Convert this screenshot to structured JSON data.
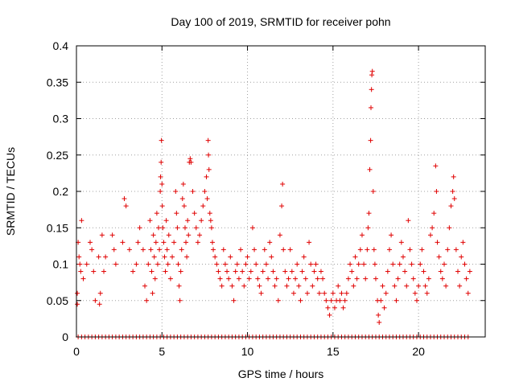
{
  "chart_data": {
    "type": "scatter",
    "title": "Day 100 of 2019, SRMTID for receiver pohn",
    "xlabel": "GPS time / hours",
    "ylabel": "SRMTID / TECUs",
    "xlim": [
      0,
      23.9
    ],
    "ylim": [
      0,
      0.4
    ],
    "x_ticks": [
      0,
      5,
      10,
      15,
      20
    ],
    "x_tick_labels": [
      "0",
      "5",
      "10",
      "15",
      "20"
    ],
    "y_ticks": [
      0,
      0.05,
      0.1,
      0.15,
      0.2,
      0.25,
      0.3,
      0.35,
      0.4
    ],
    "y_tick_labels": [
      "0",
      "0.05",
      "0.1",
      "0.15",
      "0.2",
      "0.25",
      "0.3",
      "0.35",
      "0.4"
    ],
    "grid": true,
    "marker": "+",
    "color": "#e00000",
    "series": [
      {
        "name": "SRMTID",
        "points": [
          [
            0.05,
            0.06
          ],
          [
            0.05,
            0.045
          ],
          [
            0.1,
            0.13
          ],
          [
            0.15,
            0.11
          ],
          [
            0.2,
            0.1
          ],
          [
            0.25,
            0.09
          ],
          [
            0.3,
            0.16
          ],
          [
            0.4,
            0.08
          ],
          [
            0.6,
            0.1
          ],
          [
            0.8,
            0.13
          ],
          [
            0.9,
            0.12
          ],
          [
            1.0,
            0.09
          ],
          [
            1.1,
            0.05
          ],
          [
            1.3,
            0.11
          ],
          [
            1.35,
            0.045
          ],
          [
            1.4,
            0.06
          ],
          [
            1.5,
            0.14
          ],
          [
            1.6,
            0.09
          ],
          [
            1.7,
            0.11
          ],
          [
            2.1,
            0.14
          ],
          [
            2.2,
            0.12
          ],
          [
            2.3,
            0.1
          ],
          [
            2.7,
            0.13
          ],
          [
            2.8,
            0.19
          ],
          [
            2.9,
            0.18
          ],
          [
            3.1,
            0.12
          ],
          [
            3.3,
            0.09
          ],
          [
            3.5,
            0.1
          ],
          [
            3.6,
            0.13
          ],
          [
            3.7,
            0.15
          ],
          [
            3.9,
            0.12
          ],
          [
            4.0,
            0.07
          ],
          [
            4.1,
            0.05
          ],
          [
            4.2,
            0.1
          ],
          [
            4.3,
            0.16
          ],
          [
            4.35,
            0.12
          ],
          [
            4.4,
            0.09
          ],
          [
            4.45,
            0.06
          ],
          [
            4.5,
            0.14
          ],
          [
            4.55,
            0.11
          ],
          [
            4.6,
            0.08
          ],
          [
            4.65,
            0.13
          ],
          [
            4.7,
            0.17
          ],
          [
            4.75,
            0.1
          ],
          [
            4.8,
            0.15
          ],
          [
            4.85,
            0.12
          ],
          [
            4.9,
            0.2
          ],
          [
            4.92,
            0.22
          ],
          [
            4.95,
            0.24
          ],
          [
            4.97,
            0.27
          ],
          [
            5.0,
            0.21
          ],
          [
            5.02,
            0.18
          ],
          [
            5.05,
            0.15
          ],
          [
            5.1,
            0.13
          ],
          [
            5.15,
            0.11
          ],
          [
            5.2,
            0.09
          ],
          [
            5.25,
            0.16
          ],
          [
            5.3,
            0.12
          ],
          [
            5.35,
            0.1
          ],
          [
            5.4,
            0.14
          ],
          [
            5.5,
            0.08
          ],
          [
            5.6,
            0.11
          ],
          [
            5.7,
            0.13
          ],
          [
            5.8,
            0.2
          ],
          [
            5.85,
            0.17
          ],
          [
            5.9,
            0.15
          ],
          [
            5.95,
            0.1
          ],
          [
            6.0,
            0.07
          ],
          [
            6.05,
            0.05
          ],
          [
            6.1,
            0.09
          ],
          [
            6.15,
            0.12
          ],
          [
            6.2,
            0.19
          ],
          [
            6.25,
            0.21
          ],
          [
            6.3,
            0.18
          ],
          [
            6.35,
            0.15
          ],
          [
            6.4,
            0.13
          ],
          [
            6.45,
            0.11
          ],
          [
            6.5,
            0.16
          ],
          [
            6.55,
            0.14
          ],
          [
            6.6,
            0.24
          ],
          [
            6.65,
            0.245
          ],
          [
            6.7,
            0.24
          ],
          [
            6.8,
            0.2
          ],
          [
            6.9,
            0.17
          ],
          [
            7.0,
            0.15
          ],
          [
            7.1,
            0.13
          ],
          [
            7.2,
            0.14
          ],
          [
            7.3,
            0.16
          ],
          [
            7.4,
            0.18
          ],
          [
            7.5,
            0.2
          ],
          [
            7.6,
            0.22
          ],
          [
            7.65,
            0.19
          ],
          [
            7.7,
            0.27
          ],
          [
            7.72,
            0.25
          ],
          [
            7.75,
            0.23
          ],
          [
            7.8,
            0.17
          ],
          [
            7.85,
            0.16
          ],
          [
            7.9,
            0.15
          ],
          [
            7.95,
            0.13
          ],
          [
            8.0,
            0.12
          ],
          [
            8.1,
            0.11
          ],
          [
            8.2,
            0.1
          ],
          [
            8.3,
            0.09
          ],
          [
            8.4,
            0.08
          ],
          [
            8.5,
            0.07
          ],
          [
            8.6,
            0.12
          ],
          [
            8.7,
            0.1
          ],
          [
            8.8,
            0.09
          ],
          [
            8.9,
            0.08
          ],
          [
            9.0,
            0.11
          ],
          [
            9.1,
            0.07
          ],
          [
            9.2,
            0.05
          ],
          [
            9.3,
            0.09
          ],
          [
            9.4,
            0.1
          ],
          [
            9.5,
            0.08
          ],
          [
            9.6,
            0.12
          ],
          [
            9.7,
            0.09
          ],
          [
            9.8,
            0.07
          ],
          [
            9.9,
            0.1
          ],
          [
            10.0,
            0.11
          ],
          [
            10.1,
            0.08
          ],
          [
            10.2,
            0.09
          ],
          [
            10.3,
            0.15
          ],
          [
            10.4,
            0.12
          ],
          [
            10.5,
            0.1
          ],
          [
            10.6,
            0.08
          ],
          [
            10.7,
            0.07
          ],
          [
            10.8,
            0.06
          ],
          [
            10.9,
            0.09
          ],
          [
            11.0,
            0.12
          ],
          [
            11.1,
            0.1
          ],
          [
            11.2,
            0.08
          ],
          [
            11.3,
            0.13
          ],
          [
            11.4,
            0.11
          ],
          [
            11.5,
            0.09
          ],
          [
            11.6,
            0.07
          ],
          [
            11.7,
            0.08
          ],
          [
            11.8,
            0.05
          ],
          [
            11.9,
            0.14
          ],
          [
            12.0,
            0.18
          ],
          [
            12.05,
            0.21
          ],
          [
            12.1,
            0.12
          ],
          [
            12.2,
            0.09
          ],
          [
            12.3,
            0.07
          ],
          [
            12.4,
            0.08
          ],
          [
            12.5,
            0.12
          ],
          [
            12.6,
            0.09
          ],
          [
            12.7,
            0.06
          ],
          [
            12.8,
            0.08
          ],
          [
            12.9,
            0.1
          ],
          [
            13.0,
            0.07
          ],
          [
            13.1,
            0.05
          ],
          [
            13.2,
            0.09
          ],
          [
            13.3,
            0.11
          ],
          [
            13.4,
            0.08
          ],
          [
            13.5,
            0.06
          ],
          [
            13.6,
            0.13
          ],
          [
            13.7,
            0.1
          ],
          [
            13.8,
            0.07
          ],
          [
            13.9,
            0.09
          ],
          [
            14.0,
            0.1
          ],
          [
            14.1,
            0.08
          ],
          [
            14.2,
            0.06
          ],
          [
            14.3,
            0.09
          ],
          [
            14.4,
            0.08
          ],
          [
            14.5,
            0.06
          ],
          [
            14.6,
            0.05
          ],
          [
            14.7,
            0.04
          ],
          [
            14.8,
            0.03
          ],
          [
            14.9,
            0.05
          ],
          [
            15.0,
            0.06
          ],
          [
            15.1,
            0.04
          ],
          [
            15.2,
            0.05
          ],
          [
            15.3,
            0.07
          ],
          [
            15.4,
            0.05
          ],
          [
            15.5,
            0.06
          ],
          [
            15.6,
            0.04
          ],
          [
            15.7,
            0.05
          ],
          [
            15.8,
            0.06
          ],
          [
            15.9,
            0.08
          ],
          [
            16.0,
            0.1
          ],
          [
            16.1,
            0.09
          ],
          [
            16.2,
            0.07
          ],
          [
            16.3,
            0.11
          ],
          [
            16.4,
            0.08
          ],
          [
            16.5,
            0.1
          ],
          [
            16.6,
            0.12
          ],
          [
            16.7,
            0.14
          ],
          [
            16.8,
            0.1
          ],
          [
            16.9,
            0.08
          ],
          [
            17.0,
            0.12
          ],
          [
            17.05,
            0.15
          ],
          [
            17.1,
            0.17
          ],
          [
            17.15,
            0.23
          ],
          [
            17.2,
            0.27
          ],
          [
            17.22,
            0.315
          ],
          [
            17.25,
            0.34
          ],
          [
            17.27,
            0.36
          ],
          [
            17.3,
            0.365
          ],
          [
            17.35,
            0.2
          ],
          [
            17.4,
            0.12
          ],
          [
            17.45,
            0.1
          ],
          [
            17.5,
            0.08
          ],
          [
            17.6,
            0.05
          ],
          [
            17.65,
            0.03
          ],
          [
            17.7,
            0.02
          ],
          [
            17.8,
            0.05
          ],
          [
            17.9,
            0.07
          ],
          [
            18.0,
            0.04
          ],
          [
            18.1,
            0.06
          ],
          [
            18.2,
            0.09
          ],
          [
            18.3,
            0.12
          ],
          [
            18.4,
            0.14
          ],
          [
            18.5,
            0.1
          ],
          [
            18.6,
            0.07
          ],
          [
            18.7,
            0.05
          ],
          [
            18.8,
            0.08
          ],
          [
            18.9,
            0.1
          ],
          [
            19.0,
            0.13
          ],
          [
            19.1,
            0.11
          ],
          [
            19.2,
            0.09
          ],
          [
            19.3,
            0.07
          ],
          [
            19.4,
            0.16
          ],
          [
            19.5,
            0.12
          ],
          [
            19.6,
            0.1
          ],
          [
            19.7,
            0.08
          ],
          [
            19.8,
            0.06
          ],
          [
            19.9,
            0.05
          ],
          [
            20.0,
            0.07
          ],
          [
            20.1,
            0.1
          ],
          [
            20.2,
            0.12
          ],
          [
            20.3,
            0.09
          ],
          [
            20.4,
            0.07
          ],
          [
            20.5,
            0.06
          ],
          [
            20.6,
            0.08
          ],
          [
            20.7,
            0.14
          ],
          [
            20.8,
            0.15
          ],
          [
            20.9,
            0.17
          ],
          [
            21.0,
            0.235
          ],
          [
            21.05,
            0.2
          ],
          [
            21.1,
            0.13
          ],
          [
            21.2,
            0.11
          ],
          [
            21.3,
            0.09
          ],
          [
            21.4,
            0.08
          ],
          [
            21.5,
            0.1
          ],
          [
            21.6,
            0.07
          ],
          [
            21.7,
            0.12
          ],
          [
            21.8,
            0.15
          ],
          [
            21.9,
            0.18
          ],
          [
            22.0,
            0.2
          ],
          [
            22.05,
            0.22
          ],
          [
            22.1,
            0.19
          ],
          [
            22.2,
            0.12
          ],
          [
            22.3,
            0.09
          ],
          [
            22.4,
            0.07
          ],
          [
            22.5,
            0.11
          ],
          [
            22.6,
            0.13
          ],
          [
            22.7,
            0.1
          ],
          [
            22.8,
            0.08
          ],
          [
            22.9,
            0.06
          ],
          [
            23.0,
            0.09
          ]
        ],
        "zero_points": [
          0.1,
          0.3,
          0.5,
          0.7,
          0.9,
          1.1,
          1.3,
          1.5,
          1.7,
          1.9,
          2.1,
          2.3,
          2.5,
          2.7,
          2.9,
          3.1,
          3.3,
          3.5,
          3.7,
          3.9,
          4.1,
          4.3,
          4.5,
          4.7,
          4.9,
          5.1,
          5.3,
          5.5,
          5.7,
          5.9,
          6.1,
          6.3,
          6.5,
          6.7,
          6.9,
          7.1,
          7.3,
          7.5,
          7.7,
          7.9,
          8.1,
          8.3,
          8.5,
          8.7,
          8.9,
          9.1,
          9.3,
          9.5,
          9.7,
          9.9,
          10.1,
          10.3,
          10.5,
          10.7,
          10.9,
          11.1,
          11.3,
          11.5,
          11.7,
          11.9,
          12.1,
          12.3,
          12.5,
          12.7,
          12.9,
          13.1,
          13.3,
          13.5,
          13.7,
          13.9,
          14.1,
          14.3,
          14.5,
          14.7,
          14.9,
          15.1,
          15.3,
          15.5,
          15.7,
          15.9,
          16.1,
          16.3,
          16.5,
          16.7,
          16.9,
          17.1,
          17.3,
          17.5,
          17.7,
          17.9,
          18.1,
          18.3,
          18.5,
          18.7,
          18.9,
          19.1,
          19.3,
          19.5,
          19.7,
          19.9,
          20.1,
          20.3,
          20.5,
          20.7,
          20.9,
          21.1,
          21.3,
          21.5,
          21.7,
          21.9,
          22.1,
          22.3,
          22.5,
          22.7,
          22.9
        ]
      }
    ]
  }
}
